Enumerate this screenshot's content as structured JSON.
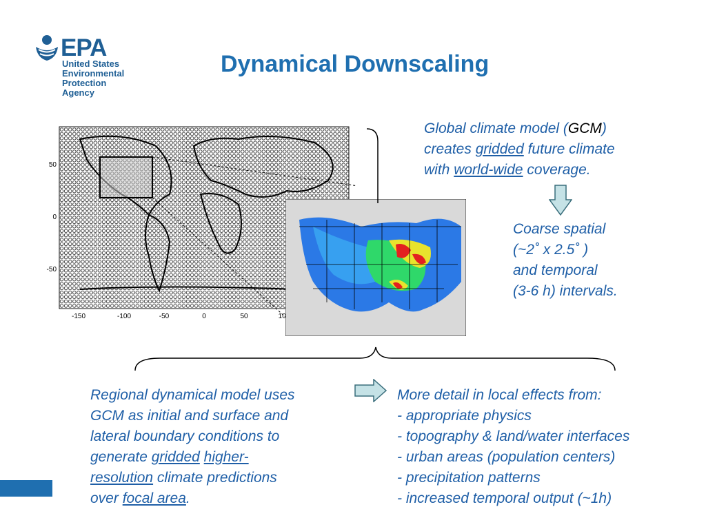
{
  "logo": {
    "wordmark": "EPA",
    "line1": "United States",
    "line2": "Environmental Protection",
    "line3": "Agency"
  },
  "title": "Dynamical Downscaling",
  "gcm_text": {
    "p1": "Global climate model (",
    "gcm": "GCM",
    "p2": ")",
    "p3": "creates ",
    "gridded": "gridded",
    "p4": " future climate",
    "p5": "with ",
    "world_wide": "world-wide",
    "p6": " coverage."
  },
  "coarse_text": {
    "l1": "Coarse spatial",
    "l2": "(~2˚  x 2.5˚ )",
    "l3": "and temporal",
    "l4": "(3-6 h) intervals."
  },
  "regional_text": {
    "l1": "Regional dynamical model uses",
    "l2": "GCM as initial and surface and",
    "l3": "lateral boundary conditions to",
    "l4a": "generate ",
    "gridded": "gridded",
    "higher": "higher-",
    "resolution": "resolution",
    "l5b": " climate predictions",
    "l6a": "over ",
    "focal_area": "focal area",
    "l6b": "."
  },
  "detail_text": {
    "l1": "More detail in local effects from:",
    "l2": "- appropriate physics",
    "l3": "- topography & land/water interfaces",
    "l4": "- urban areas (population centers)",
    "l5": "- precipitation patterns",
    "l6": "- increased temporal output (~1h)"
  },
  "map_axes": {
    "x_ticks": [
      "-150",
      "-100",
      "-50",
      "0",
      "50",
      "100"
    ],
    "y_ticks": [
      "50",
      "0",
      "-50"
    ]
  },
  "colors": {
    "epa_blue": "#1f5f95",
    "title_blue": "#1f6fb0",
    "text_blue": "#1f5fa7",
    "arrow_fill": "#c5e2e6"
  }
}
